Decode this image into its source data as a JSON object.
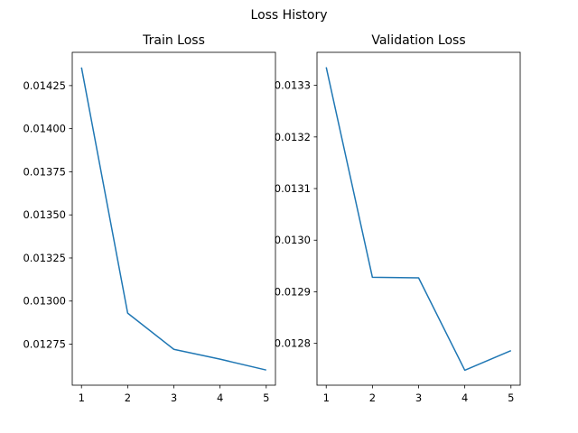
{
  "figure_title": "Loss History",
  "chart_data": [
    {
      "type": "line",
      "title": "Train Loss",
      "xlabel": "",
      "ylabel": "",
      "x": [
        1,
        2,
        3,
        4,
        5
      ],
      "series": [
        {
          "values": [
            0.014355,
            0.01293,
            0.01272,
            0.012663,
            0.0126
          ],
          "color": "#1f77b4"
        }
      ],
      "xlim": [
        0.8,
        5.2
      ],
      "ylim": [
        0.012512,
        0.014443
      ],
      "xticks": [
        1,
        2,
        3,
        4,
        5
      ],
      "xtick_labels": [
        "1",
        "2",
        "3",
        "4",
        "5"
      ],
      "yticks": [
        0.01275,
        0.013,
        0.01325,
        0.0135,
        0.01375,
        0.014,
        0.01425
      ],
      "ytick_labels": [
        "0.01275",
        "0.01300",
        "0.01325",
        "0.01350",
        "0.01375",
        "0.01400",
        "0.01425"
      ],
      "grid": false,
      "legend": "none"
    },
    {
      "type": "line",
      "title": "Validation Loss",
      "xlabel": "",
      "ylabel": "",
      "x": [
        1,
        2,
        3,
        4,
        5
      ],
      "series": [
        {
          "values": [
            0.013335,
            0.012928,
            0.012927,
            0.012748,
            0.012786
          ],
          "color": "#1f77b4"
        }
      ],
      "xlim": [
        0.8,
        5.2
      ],
      "ylim": [
        0.012719,
        0.013364
      ],
      "xticks": [
        1,
        2,
        3,
        4,
        5
      ],
      "xtick_labels": [
        "1",
        "2",
        "3",
        "4",
        "5"
      ],
      "yticks": [
        0.0128,
        0.0129,
        0.013,
        0.0131,
        0.0132,
        0.0133
      ],
      "ytick_labels": [
        "0.0128",
        "0.0129",
        "0.0130",
        "0.0131",
        "0.0132",
        "0.0133"
      ],
      "grid": false,
      "legend": "none"
    }
  ]
}
